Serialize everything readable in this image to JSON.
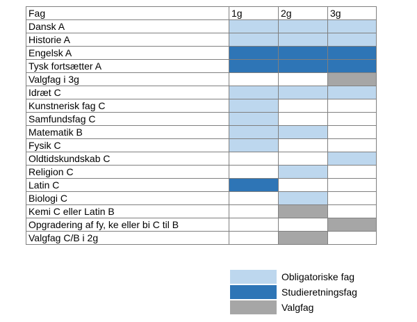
{
  "colors": {
    "obligatorisk": "#bdd7ee",
    "studieretning": "#2e75b6",
    "valgfag": "#a6a6a6",
    "none": "#ffffff"
  },
  "table": {
    "headers": [
      "Fag",
      "1g",
      "2g",
      "3g"
    ],
    "rows": [
      {
        "subject": "Dansk A",
        "cells": [
          "obligatorisk",
          "obligatorisk",
          "obligatorisk"
        ]
      },
      {
        "subject": "Historie A",
        "cells": [
          "obligatorisk",
          "obligatorisk",
          "obligatorisk"
        ]
      },
      {
        "subject": "Engelsk A",
        "cells": [
          "studieretning",
          "studieretning",
          "studieretning"
        ]
      },
      {
        "subject": "Tysk fortsætter A",
        "cells": [
          "studieretning",
          "studieretning",
          "studieretning"
        ]
      },
      {
        "subject": "Valgfag i 3g",
        "cells": [
          "none",
          "none",
          "valgfag"
        ]
      },
      {
        "subject": "Idræt C",
        "cells": [
          "obligatorisk",
          "obligatorisk",
          "obligatorisk"
        ]
      },
      {
        "subject": "Kunstnerisk fag C",
        "cells": [
          "obligatorisk",
          "none",
          "none"
        ]
      },
      {
        "subject": "Samfundsfag C",
        "cells": [
          "obligatorisk",
          "none",
          "none"
        ]
      },
      {
        "subject": "Matematik B",
        "cells": [
          "obligatorisk",
          "obligatorisk",
          "none"
        ]
      },
      {
        "subject": "Fysik C",
        "cells": [
          "obligatorisk",
          "none",
          "none"
        ]
      },
      {
        "subject": "Oldtidskundskab C",
        "cells": [
          "none",
          "none",
          "obligatorisk"
        ]
      },
      {
        "subject": "Religion C",
        "cells": [
          "none",
          "obligatorisk",
          "none"
        ]
      },
      {
        "subject": "Latin C",
        "cells": [
          "studieretning",
          "none",
          "none"
        ]
      },
      {
        "subject": "Biologi C",
        "cells": [
          "none",
          "obligatorisk",
          "none"
        ]
      },
      {
        "subject": "Kemi C eller Latin B",
        "cells": [
          "none",
          "valgfag",
          "none"
        ]
      },
      {
        "subject": "Opgradering af fy, ke eller bi C til B",
        "cells": [
          "none",
          "none",
          "valgfag"
        ]
      },
      {
        "subject": "Valgfag C/B i 2g",
        "cells": [
          "none",
          "valgfag",
          "none"
        ]
      }
    ]
  },
  "legend": [
    {
      "label": "Obligatoriske fag",
      "kind": "obligatorisk"
    },
    {
      "label": "Studieretningsfag",
      "kind": "studieretning"
    },
    {
      "label": "Valgfag",
      "kind": "valgfag"
    }
  ]
}
